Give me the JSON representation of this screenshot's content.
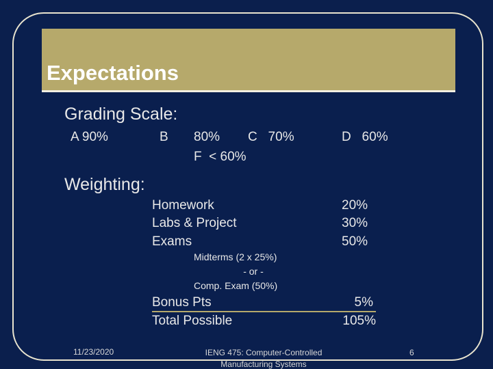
{
  "slide": {
    "title": "Expectations",
    "grading": {
      "heading": "Grading Scale:",
      "a": "A 90%",
      "b_letter": "B",
      "b_value": "80%",
      "c": "C   70%",
      "f": "F  < 60%",
      "d": "D   60%"
    },
    "weighting": {
      "heading": "Weighting:",
      "items": [
        {
          "label": "Homework",
          "value": "20%"
        },
        {
          "label": "Labs & Project",
          "value": "30%"
        },
        {
          "label": "Exams",
          "value": "50%"
        }
      ],
      "exam_notes": [
        "Midterms (2 x 25%)",
        "- or -",
        "Comp. Exam (50%)"
      ],
      "bonus_label": "Bonus Pts",
      "bonus_value": "5%",
      "total_label": "Total Possible",
      "total_value": "105%"
    },
    "footer": {
      "date": "11/23/2020",
      "course_line1": "IENG 475: Computer-Controlled",
      "course_line2": "Manufacturing Systems",
      "page": "6"
    }
  },
  "colors": {
    "background": "#0b1f4d",
    "title_bar": "#b6a96b",
    "frame": "#e9e4cf",
    "text": "#e8e8e8"
  }
}
